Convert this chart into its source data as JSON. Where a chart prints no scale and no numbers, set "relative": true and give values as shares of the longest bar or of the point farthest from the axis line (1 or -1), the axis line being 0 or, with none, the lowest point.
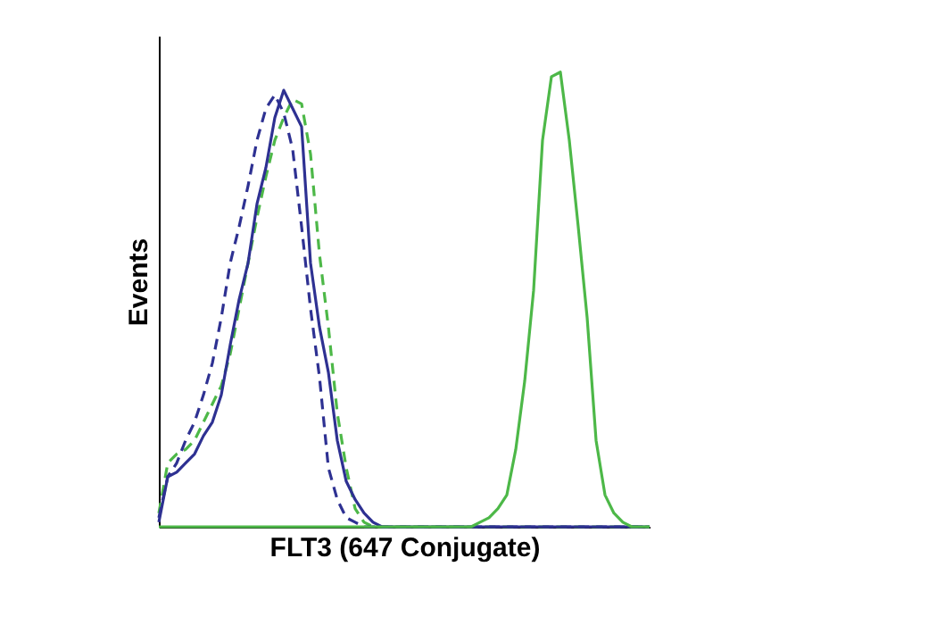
{
  "chart_data": {
    "type": "line",
    "relative": true,
    "xlabel": "FLT3 (647 Conjugate)",
    "ylabel": "Events",
    "tick_labels": false,
    "marker": "none",
    "categories": [
      null,
      null,
      null,
      null,
      null,
      null,
      null,
      null,
      null,
      null,
      null,
      null,
      null,
      null,
      null,
      null,
      null,
      null,
      null,
      null,
      null,
      null,
      null,
      null,
      null,
      null,
      null,
      null,
      null,
      null,
      null,
      null,
      null,
      null,
      null,
      null,
      null,
      null,
      null,
      null,
      null,
      null,
      null,
      null,
      null,
      null,
      null,
      null,
      null,
      null,
      null,
      null,
      null,
      null,
      null,
      null
    ],
    "series": [
      {
        "color": "#4db848",
        "line_style": "dashed",
        "values": [
          0.03,
          0.14,
          0.16,
          0.17,
          0.19,
          0.23,
          0.27,
          0.31,
          0.38,
          0.48,
          0.58,
          0.68,
          0.77,
          0.85,
          0.9,
          0.94,
          0.93,
          0.82,
          0.6,
          0.44,
          0.25,
          0.13,
          0.04,
          0.01,
          0,
          0,
          0,
          0,
          0,
          0,
          0,
          0,
          0,
          0,
          0,
          0,
          0,
          0,
          0,
          0,
          0,
          0,
          0,
          0,
          0,
          0,
          0,
          0,
          0,
          0,
          0,
          0,
          0,
          0,
          0,
          0
        ]
      },
      {
        "color": "#2e3192",
        "line_style": "dashed",
        "values": [
          0.02,
          0.11,
          0.14,
          0.19,
          0.23,
          0.29,
          0.36,
          0.46,
          0.58,
          0.66,
          0.75,
          0.85,
          0.92,
          0.95,
          0.91,
          0.83,
          0.66,
          0.48,
          0.33,
          0.13,
          0.06,
          0.02,
          0.01,
          0,
          0,
          0,
          0,
          0,
          0,
          0,
          0,
          0,
          0,
          0,
          0,
          0,
          0,
          0,
          0,
          0,
          0,
          0,
          0,
          0,
          0,
          0,
          0,
          0,
          0,
          0,
          0,
          0,
          0,
          0,
          0,
          0
        ]
      },
      {
        "color": "#2e3192",
        "line_style": "solid",
        "values": [
          0.01,
          0.11,
          0.12,
          0.14,
          0.16,
          0.2,
          0.23,
          0.29,
          0.4,
          0.5,
          0.58,
          0.71,
          0.79,
          0.9,
          0.96,
          0.92,
          0.88,
          0.58,
          0.44,
          0.34,
          0.19,
          0.1,
          0.06,
          0.03,
          0.01,
          0,
          0,
          0,
          0,
          0,
          0,
          0,
          0,
          0,
          0,
          0,
          0,
          0,
          0,
          0,
          0,
          0,
          0,
          0,
          0,
          0,
          0,
          0,
          0,
          0,
          0,
          0,
          0,
          0,
          0,
          0
        ]
      },
      {
        "color": "#4db848",
        "line_style": "solid",
        "values": [
          0,
          0,
          0,
          0,
          0,
          0,
          0,
          0,
          0,
          0,
          0,
          0,
          0,
          0,
          0,
          0,
          0,
          0,
          0,
          0,
          0,
          0,
          0,
          0,
          0,
          0,
          0,
          0,
          0,
          0,
          0,
          0,
          0,
          0,
          0,
          0,
          0.01,
          0.02,
          0.04,
          0.07,
          0.17,
          0.32,
          0.52,
          0.85,
          0.99,
          1.0,
          0.85,
          0.66,
          0.46,
          0.19,
          0.07,
          0.03,
          0.01,
          0,
          0,
          0
        ]
      }
    ]
  }
}
